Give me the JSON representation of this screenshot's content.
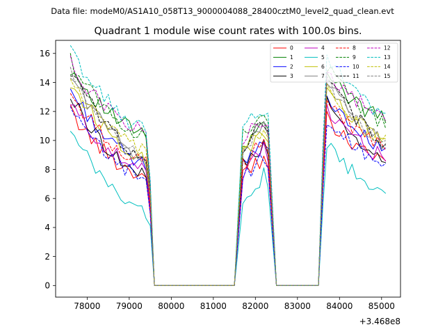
{
  "chart_data": {
    "type": "line",
    "suptitle": "Data file: modeM0/AS1A10_058T13_9000004088_28400cztM0_level2_quad_clean.evt",
    "title": "Quadrant 1 module wise count rates with 100.0s bins.",
    "xlabel": "",
    "ylabel": "",
    "x_offset_label": "+3.468e8",
    "xlim": [
      77250,
      85450
    ],
    "ylim": [
      -0.8,
      16.9
    ],
    "xticks": [
      "78000",
      "79000",
      "80000",
      "81000",
      "82000",
      "83000",
      "84000",
      "85000"
    ],
    "xtick_values": [
      78000,
      79000,
      80000,
      81000,
      82000,
      83000,
      84000,
      85000
    ],
    "yticks": [
      "0",
      "2",
      "4",
      "6",
      "8",
      "10",
      "12",
      "14",
      "16"
    ],
    "ytick_values": [
      0,
      2,
      4,
      6,
      8,
      10,
      12,
      14,
      16
    ],
    "legend_position": "top-right",
    "segments": [
      {
        "start": 77600,
        "end": 79400
      },
      {
        "start": 81700,
        "end": 82200
      },
      {
        "start": 83700,
        "end": 85100
      }
    ],
    "zero_ranges": [
      {
        "start": 79600,
        "end": 81500
      },
      {
        "start": 82500,
        "end": 83500
      }
    ],
    "series": [
      {
        "name": "0",
        "color": "#ff0000",
        "dash": "solid",
        "level": 9.0,
        "slope": -1.5
      },
      {
        "name": "1",
        "color": "#008000",
        "dash": "solid",
        "level": 12.0,
        "slope": -1.6
      },
      {
        "name": "2",
        "color": "#0000ff",
        "dash": "solid",
        "level": 10.5,
        "slope": -2.3
      },
      {
        "name": "3",
        "color": "#000000",
        "dash": "solid",
        "level": 10.0,
        "slope": -2.6
      },
      {
        "name": "4",
        "color": "#bf00bf",
        "dash": "solid",
        "level": 9.5,
        "slope": -1.7
      },
      {
        "name": "5",
        "color": "#00bfbf",
        "dash": "solid",
        "level": 7.5,
        "slope": -2.5
      },
      {
        "name": "6",
        "color": "#bfbf00",
        "dash": "solid",
        "level": 11.0,
        "slope": -2.3
      },
      {
        "name": "7",
        "color": "#808080",
        "dash": "solid",
        "level": 11.5,
        "slope": -2.8
      },
      {
        "name": "8",
        "color": "#ff0000",
        "dash": "dashed",
        "level": 10.2,
        "slope": -1.8
      },
      {
        "name": "9",
        "color": "#008000",
        "dash": "dashed",
        "level": 12.5,
        "slope": -2.4
      },
      {
        "name": "10",
        "color": "#0000ff",
        "dash": "dashed",
        "level": 9.0,
        "slope": -1.6
      },
      {
        "name": "11",
        "color": "#000000",
        "dash": "dashed",
        "level": 11.8,
        "slope": -3.2
      },
      {
        "name": "12",
        "color": "#bf00bf",
        "dash": "dashed",
        "level": 12.3,
        "slope": -1.7
      },
      {
        "name": "13",
        "color": "#00bfbf",
        "dash": "dashed",
        "level": 13.2,
        "slope": -2.6
      },
      {
        "name": "14",
        "color": "#bfbf00",
        "dash": "dashed",
        "level": 11.3,
        "slope": -2.2
      },
      {
        "name": "15",
        "color": "#808080",
        "dash": "dashed",
        "level": 11.6,
        "slope": -2.8
      }
    ]
  }
}
